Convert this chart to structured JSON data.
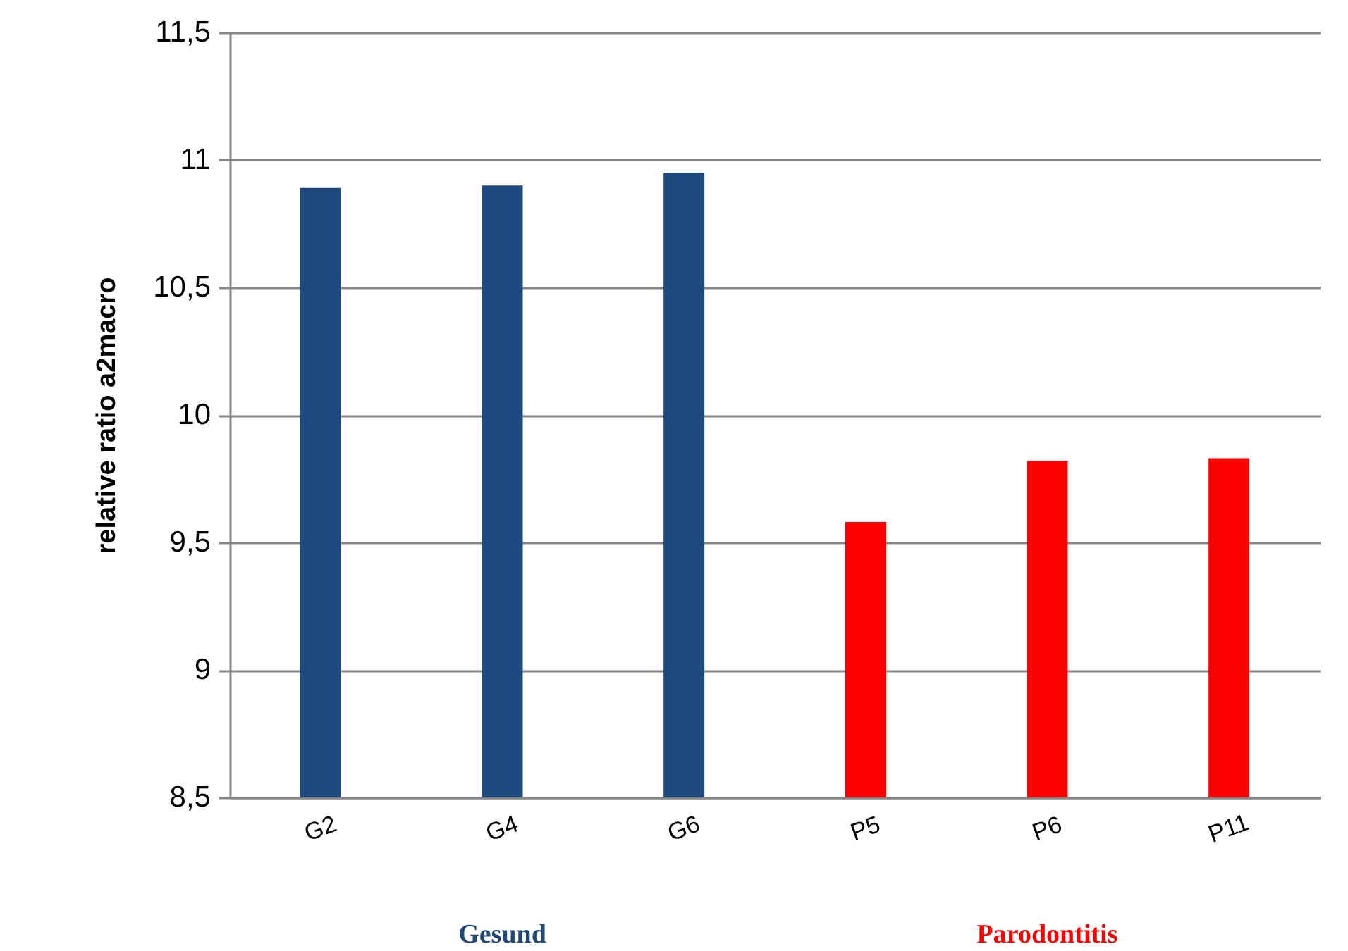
{
  "chart_data": {
    "type": "bar",
    "ylabel": "relative ratio a2macro",
    "categories": [
      "G2",
      "G4",
      "G6",
      "P5",
      "P6",
      "P11"
    ],
    "series": [
      {
        "name": "Gesund",
        "color": "#1f497d",
        "values": [
          10.89,
          10.9,
          10.95,
          null,
          null,
          null
        ]
      },
      {
        "name": "Parodontitis",
        "color": "#ff0000",
        "values": [
          null,
          null,
          null,
          9.58,
          9.82,
          9.83
        ]
      }
    ],
    "ylim": [
      8.5,
      11.5
    ],
    "yticks": [
      {
        "value": 8.5,
        "label": "8,5"
      },
      9,
      {
        "value": 9.5,
        "label": "9,5"
      },
      10,
      {
        "value": 10.5,
        "label": "10,5"
      },
      11,
      {
        "value": 11.5,
        "label": "11,5"
      }
    ],
    "grid": "y",
    "legend": "bottom"
  }
}
